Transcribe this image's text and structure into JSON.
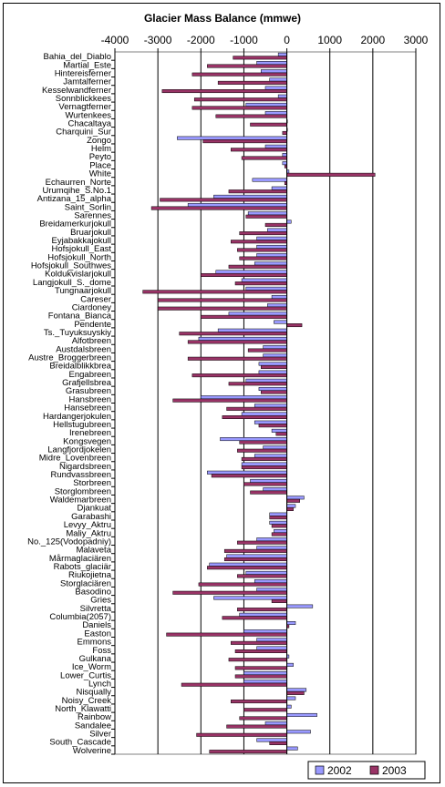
{
  "chart_data": {
    "type": "bar",
    "orientation": "horizontal",
    "title": "Glacier Mass Balance (mmwe)",
    "xlim": [
      -4000,
      3000
    ],
    "xticks": [
      -4000,
      -3000,
      -2000,
      -1000,
      0,
      1000,
      2000,
      3000
    ],
    "xtick_labels": [
      "-4000",
      "-3000",
      "-2000",
      "-1000",
      "0",
      "1000",
      "2000",
      "3000"
    ],
    "x_axis_position": "top",
    "grid": "vertical",
    "legend_position": "bottom-right",
    "categories": [
      "Bahia_del_Diablo",
      "Martial_Este",
      "Hintereisferner",
      "Jamtalferner",
      "Kesselwandferner",
      "Sonnblickkees",
      "Vernagtferner",
      "Wurtenkees",
      "Chacaltaya",
      "Charquini_Sur",
      "Zongo",
      "Helm",
      "Peyto",
      "Place",
      "White",
      "Echaurren_Norte",
      "Urumqihe_S.No.1",
      "Antizana_15_alpha",
      "Saint_Sorlin",
      "Sarennes",
      "Breidamerkurjokull",
      "Bruarjokull",
      "Eyjabakkajokull",
      "Hofsjokull_East",
      "Hofsjokull_North",
      "Hofsjokull_Southwes",
      "Koldukvislarjokull",
      "Langjokull_S._dome",
      "Tungnaarjokull",
      "Careser",
      "Ciardoney",
      "Fontana_Bianca",
      "Pendente",
      "Ts._Tuyuksuyskiy",
      "Alfotbreen",
      "Austdalsbreen",
      "Austre_Broggerbreen",
      "Breidalblikkbrea",
      "Engabreen",
      "Grafjellsbrea",
      "Grasubreen",
      "Hansbreen",
      "Hansebreen",
      "Hardangerjokulen",
      "Hellstugubreen",
      "Irenebreen",
      "Kongsvegen",
      "Langfjordjokelen",
      "Midre_Lovenbreen",
      "Nigardsbreen",
      "Rundvassbreen",
      "Storbreen",
      "Storglombreen",
      "Waldemarbreen",
      "Djankuat",
      "Garabashi",
      "Levyy_Aktru",
      "Maliy_Aktru",
      "No._125(Vodopadniy)",
      "Malaveta",
      "Mårmaglaciären",
      "Rabots_glaciär",
      "Riukojietna",
      "Storglaciären",
      "Basodino",
      "Gries",
      "Silvretta",
      "Columbia(2057)",
      "Daniels",
      "Easton",
      "Emmons",
      "Foss",
      "Gulkana",
      "Ice_Worm",
      "Lower_Curtis",
      "Lynch",
      "Nisqually",
      "Noisy_Creek",
      "North_Klawatti",
      "Rainbow",
      "Sandalee",
      "Silver",
      "South_Cascade",
      "Wolverine"
    ],
    "series": [
      {
        "name": "2002",
        "color": "#9999ff",
        "values": [
          -200,
          -700,
          -600,
          -400,
          -500,
          -200,
          -950,
          -500,
          0,
          0,
          -2550,
          -500,
          -100,
          -100,
          50,
          -800,
          -350,
          -1700,
          -2300,
          -900,
          100,
          -450,
          -700,
          -700,
          -700,
          -750,
          -1650,
          -1050,
          -950,
          -350,
          -450,
          -1350,
          -300,
          -1600,
          -2050,
          -550,
          -550,
          -650,
          -650,
          -950,
          -650,
          -2000,
          -750,
          -1050,
          -750,
          -350,
          -1550,
          -550,
          -750,
          -1050,
          -1850,
          -850,
          -550,
          400,
          200,
          -400,
          -400,
          -300,
          -700,
          -700,
          -1400,
          -1800,
          -950,
          -750,
          -700,
          -1700,
          600,
          -1100,
          200,
          -1000,
          -700,
          -700,
          50,
          150,
          -1000,
          -1000,
          450,
          200,
          100,
          700,
          -500,
          550,
          -700,
          250
        ]
      },
      {
        "name": "2003",
        "color": "#993366",
        "values": [
          -1250,
          -1850,
          -2200,
          -1600,
          -2900,
          -2150,
          -2200,
          -1650,
          -850,
          -100,
          -1950,
          -1300,
          -1050,
          -50,
          2050,
          -50,
          -1350,
          -2950,
          -3150,
          -950,
          -500,
          -1100,
          -1300,
          -1150,
          -1100,
          -1350,
          -2000,
          -1200,
          -3350,
          -3000,
          -3000,
          -2000,
          350,
          -2500,
          -2300,
          -900,
          -2300,
          -600,
          -2200,
          -1350,
          -600,
          -2650,
          -1400,
          -1500,
          -650,
          -250,
          -1100,
          -1150,
          -1050,
          -1050,
          -1750,
          -1000,
          -850,
          300,
          150,
          -400,
          -350,
          -350,
          -1150,
          -1450,
          -1450,
          -1850,
          -1150,
          -2050,
          -2650,
          -350,
          -1150,
          -1500,
          50,
          -2800,
          -1300,
          -1200,
          -1350,
          -1200,
          -1200,
          -2450,
          400,
          -1300,
          -1000,
          -1100,
          -1400,
          -2100,
          -400,
          -1800
        ]
      }
    ]
  }
}
